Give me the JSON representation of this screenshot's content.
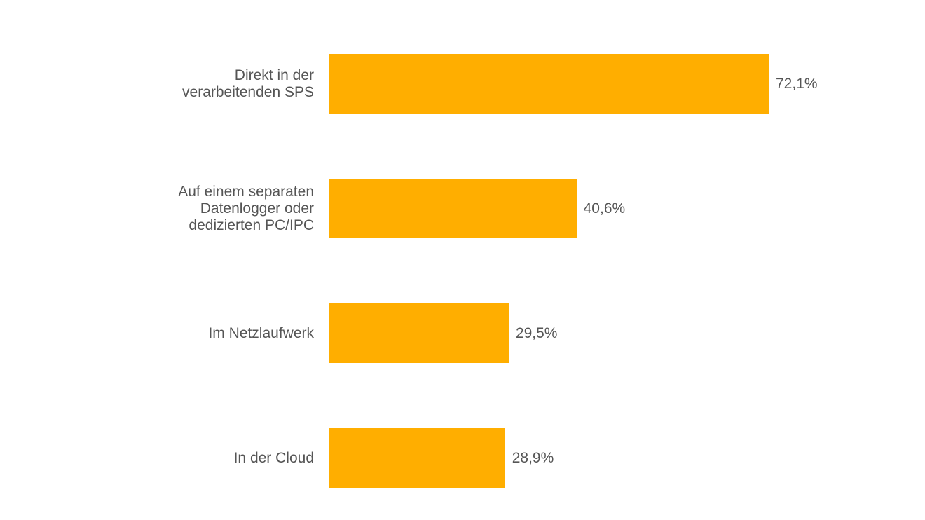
{
  "chart_data": {
    "type": "bar",
    "orientation": "horizontal",
    "categories": [
      "Direkt in der\nverarbeitenden SPS",
      "Auf einem separaten\nDatenlogger oder\ndedizierten PC/IPC",
      "Im Netzlaufwerk",
      "In der Cloud"
    ],
    "values": [
      72.1,
      40.6,
      29.5,
      28.9
    ],
    "value_labels": [
      "72,1%",
      "40,6%",
      "29,5%",
      "28,9%"
    ],
    "unit": "%",
    "xlim": [
      0,
      100
    ],
    "bar_color": "#FFAE00",
    "grid": false,
    "legend": "none"
  }
}
